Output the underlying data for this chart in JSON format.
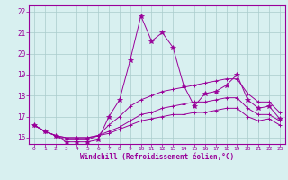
{
  "xlabel": "Windchill (Refroidissement éolien,°C)",
  "background_color": "#d8f0f0",
  "line_color": "#990099",
  "grid_color": "#aacccc",
  "xlim": [
    -0.5,
    23.5
  ],
  "ylim": [
    15.7,
    22.3
  ],
  "yticks": [
    16,
    17,
    18,
    19,
    20,
    21,
    22
  ],
  "xticks": [
    0,
    1,
    2,
    3,
    4,
    5,
    6,
    7,
    8,
    9,
    10,
    11,
    12,
    13,
    14,
    15,
    16,
    17,
    18,
    19,
    20,
    21,
    22,
    23
  ],
  "series": [
    {
      "x": [
        0,
        1,
        2,
        3,
        4,
        5,
        6,
        7,
        8,
        9,
        10,
        11,
        12,
        13,
        14,
        15,
        16,
        17,
        18,
        19,
        20,
        21,
        22,
        23
      ],
      "y": [
        16.6,
        16.3,
        16.1,
        15.8,
        15.8,
        15.8,
        15.9,
        17.0,
        17.8,
        19.7,
        21.8,
        20.6,
        21.0,
        20.3,
        18.5,
        17.5,
        18.1,
        18.2,
        18.5,
        19.0,
        17.8,
        17.4,
        17.5,
        16.9
      ],
      "marker": "star"
    },
    {
      "x": [
        0,
        1,
        2,
        3,
        4,
        5,
        6,
        7,
        8,
        9,
        10,
        11,
        12,
        13,
        14,
        15,
        16,
        17,
        18,
        19,
        20,
        21,
        22,
        23
      ],
      "y": [
        16.6,
        16.3,
        16.1,
        15.9,
        15.9,
        15.9,
        16.1,
        16.6,
        17.0,
        17.5,
        17.8,
        18.0,
        18.2,
        18.3,
        18.4,
        18.5,
        18.6,
        18.7,
        18.8,
        18.8,
        18.1,
        17.7,
        17.7,
        17.2
      ],
      "marker": "tick"
    },
    {
      "x": [
        0,
        1,
        2,
        3,
        4,
        5,
        6,
        7,
        8,
        9,
        10,
        11,
        12,
        13,
        14,
        15,
        16,
        17,
        18,
        19,
        20,
        21,
        22,
        23
      ],
      "y": [
        16.6,
        16.3,
        16.1,
        16.0,
        16.0,
        16.0,
        16.1,
        16.3,
        16.5,
        16.8,
        17.1,
        17.2,
        17.4,
        17.5,
        17.6,
        17.7,
        17.7,
        17.8,
        17.9,
        17.9,
        17.4,
        17.1,
        17.1,
        16.8
      ],
      "marker": "tick"
    },
    {
      "x": [
        0,
        1,
        2,
        3,
        4,
        5,
        6,
        7,
        8,
        9,
        10,
        11,
        12,
        13,
        14,
        15,
        16,
        17,
        18,
        19,
        20,
        21,
        22,
        23
      ],
      "y": [
        16.6,
        16.3,
        16.1,
        16.0,
        16.0,
        16.0,
        16.1,
        16.2,
        16.4,
        16.6,
        16.8,
        16.9,
        17.0,
        17.1,
        17.1,
        17.2,
        17.2,
        17.3,
        17.4,
        17.4,
        17.0,
        16.8,
        16.9,
        16.6
      ],
      "marker": "tick"
    }
  ]
}
